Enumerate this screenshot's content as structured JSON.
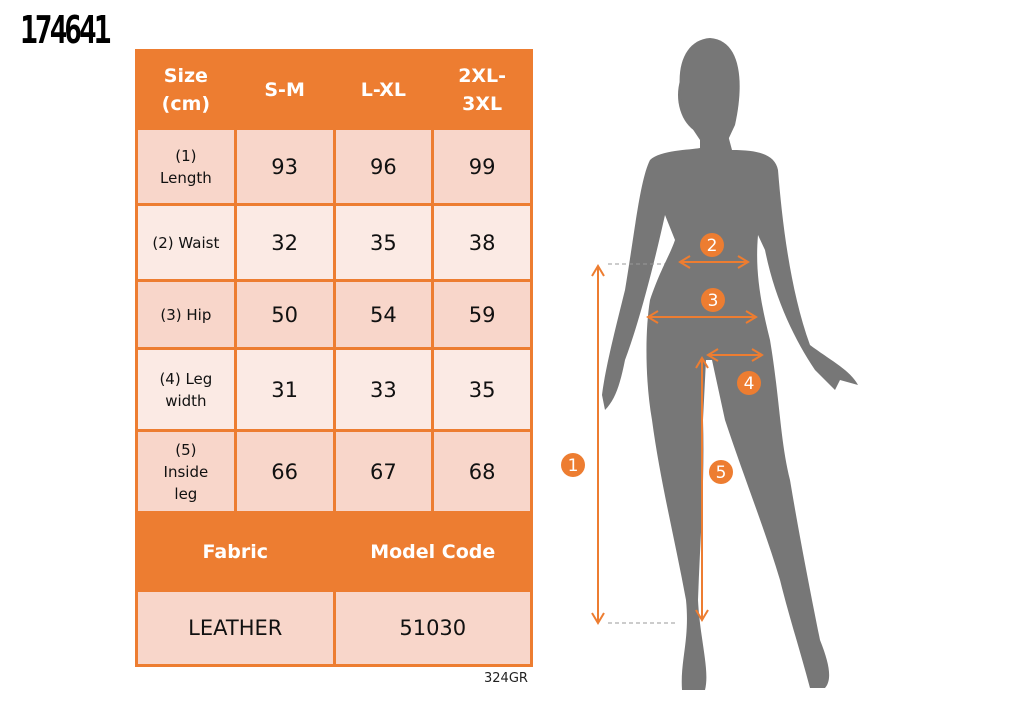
{
  "product_code": "174641",
  "table": {
    "header": [
      "Size (cm)",
      "S-M",
      "L-XL",
      "2XL-3XL"
    ],
    "rows": [
      {
        "label": "(1) Length",
        "values": [
          "93",
          "96",
          "99"
        ]
      },
      {
        "label": "(2) Waist",
        "values": [
          "32",
          "35",
          "38"
        ]
      },
      {
        "label": "(3) Hip",
        "values": [
          "50",
          "54",
          "59"
        ]
      },
      {
        "label": "(4) Leg width",
        "values": [
          "31",
          "33",
          "35"
        ]
      },
      {
        "label": "(5) Inside leg",
        "values": [
          "66",
          "67",
          "68"
        ]
      }
    ],
    "fabric_label": "Fabric",
    "model_code_label": "Model Code",
    "fabric": "LEATHER",
    "model_code": "51030"
  },
  "footer_code": "324GR",
  "figure": {
    "markers": [
      "1",
      "2",
      "3",
      "4",
      "5"
    ]
  },
  "colors": {
    "accent": "#ED7D31",
    "row_dark": "#F8D6CA",
    "row_light": "#FBEAE4",
    "silhouette": "#777777"
  }
}
